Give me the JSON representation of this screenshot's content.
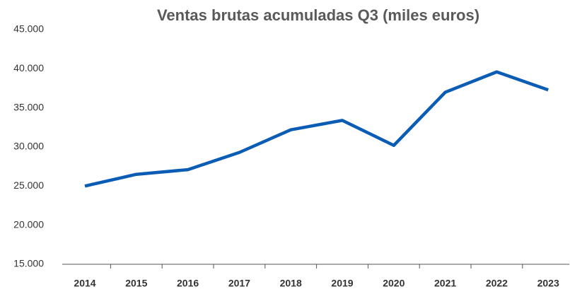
{
  "chart_data": {
    "type": "line",
    "title": "Ventas  brutas acumuladas Q3 (miles euros)",
    "categories": [
      "2014",
      "2015",
      "2016",
      "2017",
      "2018",
      "2019",
      "2020",
      "2021",
      "2022",
      "2023"
    ],
    "series": [
      {
        "name": "Ventas brutas acumuladas Q3",
        "color": "#0a5cb4",
        "values": [
          25000,
          26500,
          27100,
          29300,
          32200,
          33400,
          30200,
          37000,
          39600,
          37300
        ]
      }
    ],
    "ylim": [
      15000,
      45000
    ],
    "yticks": [
      {
        "value": 15000,
        "label": "15.000"
      },
      {
        "value": 20000,
        "label": "20.000"
      },
      {
        "value": 25000,
        "label": "25.000"
      },
      {
        "value": 30000,
        "label": "30.000"
      },
      {
        "value": 35000,
        "label": "35.000"
      },
      {
        "value": 40000,
        "label": "40.000"
      },
      {
        "value": 45000,
        "label": "45.000"
      }
    ],
    "grid": false
  }
}
